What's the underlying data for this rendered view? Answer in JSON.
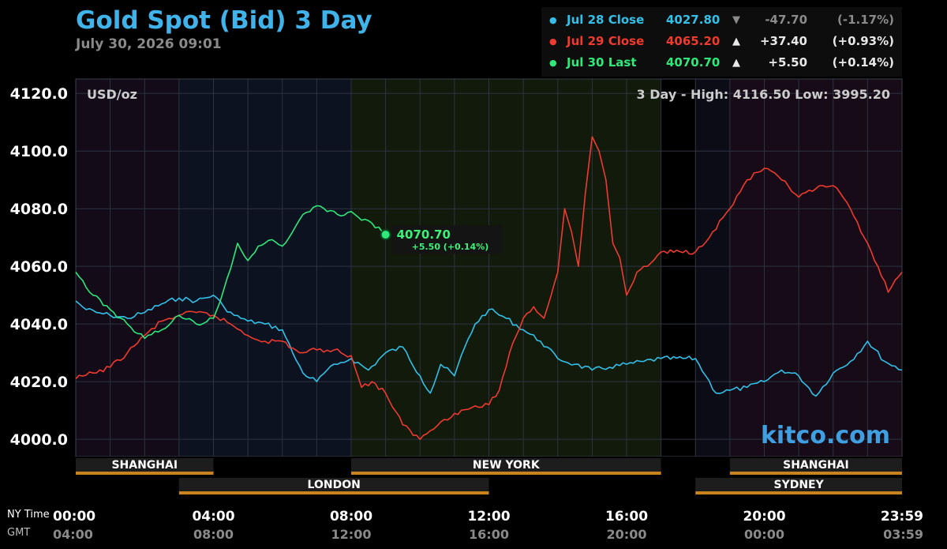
{
  "header": {
    "title": "Gold Spot (Bid) 3 Day",
    "datetime": "July 30, 2026 09:01"
  },
  "legend": [
    {
      "label": "Jul 28 Close",
      "price": "4027.80",
      "arrow": "▼",
      "change": "-47.70",
      "pct": "(-1.17%)",
      "color": "#33c0e8",
      "value_color": "#33c0e8",
      "change_color": "#8a8a8a"
    },
    {
      "label": "Jul 29 Close",
      "price": "4065.20",
      "arrow": "▲",
      "change": "+37.40",
      "pct": "(+0.93%)",
      "color": "#ef3a2f",
      "value_color": "#ef3a2f",
      "change_color": "#e8e8e8"
    },
    {
      "label": "Jul 30 Last",
      "price": "4070.70",
      "arrow": "▲",
      "change": "+5.50",
      "pct": "(+0.14%)",
      "color": "#2fe87a",
      "value_color": "#2fe87a",
      "change_color": "#e8e8e8"
    }
  ],
  "colors": {
    "background": "#000000",
    "title": "#3fb3ea",
    "jul28": "#33c0e8",
    "jul29": "#ef3a2f",
    "jul30": "#2fe87a",
    "session_bar": "#c8821e",
    "grid": "#2e3340"
  },
  "chart_data": {
    "type": "line",
    "unit_label": "USD/oz",
    "range_label": "3 Day - High: 4116.50  Low: 3995.20",
    "last_label": {
      "price": "4070.70",
      "change": "+5.50 (+0.14%)"
    },
    "watermark": "kitco.com",
    "x_unit": "hours (NY time)",
    "xlim": [
      0,
      24
    ],
    "ylim": [
      3994,
      4125
    ],
    "y_ticks": [
      "4120.0",
      "4100.0",
      "4080.0",
      "4060.0",
      "4040.0",
      "4020.0",
      "4000.0"
    ],
    "y_tick_values": [
      4120,
      4100,
      4080,
      4060,
      4040,
      4020,
      4000
    ],
    "x_ticks_ny": [
      "00:00",
      "04:00",
      "08:00",
      "12:00",
      "16:00",
      "20:00",
      "23:59"
    ],
    "x_ticks_gmt": [
      "04:00",
      "08:00",
      "12:00",
      "16:00",
      "20:00",
      "00:00",
      "03:59"
    ],
    "x_tick_hours": [
      0,
      4,
      8,
      12,
      16,
      20,
      24
    ],
    "x_axis_label_ny": "NY Time",
    "x_axis_label_gmt": "GMT",
    "sessions": [
      {
        "name": "SHANGHAI",
        "start": 0,
        "end": 4,
        "row": 1,
        "show_label": true
      },
      {
        "name": "NEW YORK",
        "start": 8,
        "end": 17,
        "row": 1,
        "show_label": true
      },
      {
        "name": "SHANGHAI",
        "start": 19,
        "end": 24,
        "row": 1,
        "show_label": true
      },
      {
        "name": "LONDON",
        "start": 3,
        "end": 12,
        "row": 2,
        "show_label": true
      },
      {
        "name": "SYDNEY",
        "start": 18,
        "end": 24,
        "row": 2,
        "show_label": true
      }
    ],
    "background_bands": [
      {
        "start": 0,
        "end": 3,
        "color": "#130b17"
      },
      {
        "start": 3,
        "end": 8,
        "color": "#0c1220"
      },
      {
        "start": 8,
        "end": 17,
        "color": "#121a0c"
      },
      {
        "start": 17,
        "end": 18,
        "color": "#000000"
      },
      {
        "start": 18,
        "end": 19,
        "color": "#0c0c16"
      },
      {
        "start": 19,
        "end": 24,
        "color": "#160b17"
      }
    ],
    "series": [
      {
        "name": "Jul 28 Close",
        "color": "#33c0e8",
        "x": [
          0,
          0.3,
          0.6,
          1,
          1.5,
          2,
          2.5,
          3,
          3.5,
          4,
          4.3,
          4.6,
          5,
          5.5,
          6,
          6.3,
          6.6,
          7,
          7.3,
          7.6,
          8,
          8.5,
          9,
          9.5,
          10,
          10.3,
          10.6,
          11,
          11.3,
          11.6,
          12,
          12.5,
          13,
          13.5,
          14,
          14.5,
          15,
          15.5,
          16,
          16.5,
          17,
          18,
          18.3,
          18.6,
          19,
          19.5,
          20,
          20.5,
          21,
          21.5,
          22,
          22.5,
          23,
          23.5,
          24
        ],
        "values": [
          4048,
          4045,
          4044,
          4043,
          4042,
          4044,
          4047,
          4049,
          4048,
          4050,
          4046,
          4043,
          4041,
          4040,
          4038,
          4030,
          4023,
          4020,
          4024,
          4026,
          4028,
          4024,
          4030,
          4032,
          4022,
          4016,
          4026,
          4022,
          4032,
          4040,
          4045,
          4042,
          4038,
          4034,
          4028,
          4026,
          4024,
          4025,
          4026,
          4027,
          4028,
          4028,
          4022,
          4016,
          4017,
          4018,
          4020,
          4024,
          4022,
          4015,
          4023,
          4027,
          4034,
          4027,
          4024
        ]
      },
      {
        "name": "Jul 29 Close",
        "color": "#ef3a2f",
        "x": [
          0,
          0.5,
          1,
          1.5,
          2,
          2.5,
          3,
          3.5,
          4,
          4.5,
          5,
          5.5,
          6,
          6.5,
          7,
          7.5,
          8,
          8.3,
          8.6,
          9,
          9.5,
          10,
          10.3,
          10.6,
          11,
          11.5,
          12,
          12.3,
          12.6,
          13,
          13.3,
          13.6,
          14,
          14.2,
          14.4,
          14.6,
          14.8,
          15,
          15.2,
          15.4,
          15.6,
          15.8,
          16,
          16.3,
          16.6,
          17,
          18,
          18.5,
          19,
          19.5,
          20,
          20.5,
          21,
          21.5,
          22,
          22.5,
          23,
          23.3,
          23.6,
          24
        ],
        "values": [
          4021,
          4023,
          4025,
          4030,
          4036,
          4041,
          4043,
          4044,
          4043,
          4040,
          4036,
          4034,
          4034,
          4030,
          4031,
          4031,
          4029,
          4018,
          4020,
          4016,
          4005,
          4000,
          4003,
          4006,
          4009,
          4011,
          4012,
          4017,
          4030,
          4042,
          4046,
          4042,
          4058,
          4080,
          4072,
          4060,
          4085,
          4105,
          4100,
          4090,
          4068,
          4063,
          4050,
          4058,
          4060,
          4065,
          4065,
          4072,
          4080,
          4090,
          4094,
          4090,
          4084,
          4087,
          4088,
          4080,
          4068,
          4060,
          4051,
          4058
        ]
      },
      {
        "name": "Jul 30 Last",
        "color": "#2fe87a",
        "x": [
          0,
          0.5,
          1,
          1.5,
          2,
          2.5,
          3,
          3.5,
          4,
          4.2,
          4.4,
          4.7,
          5,
          5.3,
          5.6,
          6,
          6.3,
          6.6,
          7,
          7.3,
          7.6,
          8,
          8.3,
          8.6,
          9
        ],
        "values": [
          4058,
          4050,
          4045,
          4040,
          4035,
          4038,
          4043,
          4040,
          4042,
          4048,
          4056,
          4068,
          4062,
          4067,
          4069,
          4067,
          4072,
          4078,
          4081,
          4079,
          4078,
          4079,
          4076,
          4075,
          4071
        ]
      }
    ]
  }
}
